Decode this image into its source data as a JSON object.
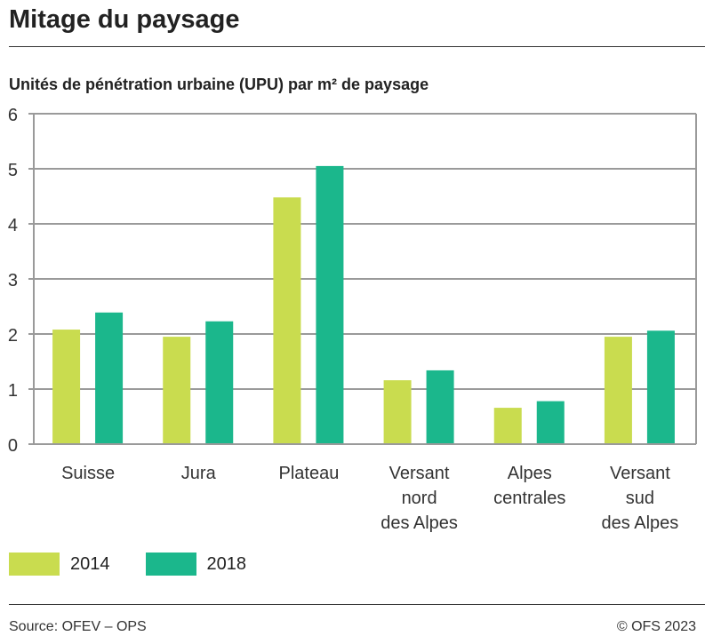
{
  "title": "Mitage du paysage",
  "subtitle": "Unités de pénétration urbaine (UPU) par m² de paysage",
  "source": "Source: OFEV – OPS",
  "copyright": "© OFS 2023",
  "chart_data": {
    "type": "bar",
    "categories": [
      "Suisse",
      "Jura",
      "Plateau",
      "Versant nord des Alpes",
      "Alpes centrales",
      "Versant sud des Alpes"
    ],
    "category_lines": [
      [
        "Suisse"
      ],
      [
        "Jura"
      ],
      [
        "Plateau"
      ],
      [
        "Versant",
        "nord",
        "des Alpes"
      ],
      [
        "Alpes",
        "centrales"
      ],
      [
        "Versant",
        "sud",
        "des Alpes"
      ]
    ],
    "series": [
      {
        "name": "2014",
        "color": "#c9dc4f",
        "values": [
          2.08,
          1.95,
          4.48,
          1.16,
          0.66,
          1.95
        ]
      },
      {
        "name": "2018",
        "color": "#1bb78c",
        "values": [
          2.39,
          2.23,
          5.05,
          1.34,
          0.78,
          2.06
        ]
      }
    ],
    "ylim": [
      0,
      6
    ],
    "yticks": [
      0,
      1,
      2,
      3,
      4,
      5,
      6
    ],
    "grid": true,
    "legend": "bottom-left"
  }
}
